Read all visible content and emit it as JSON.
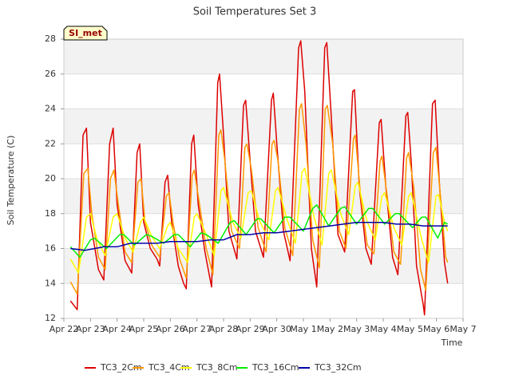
{
  "chart_data": {
    "type": "line",
    "title": "Soil Temperatures Set 3",
    "xlabel": "Time",
    "ylabel": "Soil Temperature (C)",
    "station_tag": "SI_met",
    "xlim": [
      0,
      15
    ],
    "ylim": [
      12,
      28
    ],
    "x_ticks": [
      {
        "x": 0,
        "label": "Apr 22"
      },
      {
        "x": 1,
        "label": "Apr 23"
      },
      {
        "x": 2,
        "label": "Apr 24"
      },
      {
        "x": 3,
        "label": "Apr 25"
      },
      {
        "x": 4,
        "label": "Apr 26"
      },
      {
        "x": 5,
        "label": "Apr 27"
      },
      {
        "x": 6,
        "label": "Apr 28"
      },
      {
        "x": 7,
        "label": "Apr 29"
      },
      {
        "x": 8,
        "label": "Apr 30"
      },
      {
        "x": 9,
        "label": "May 1"
      },
      {
        "x": 10,
        "label": "May 2"
      },
      {
        "x": 11,
        "label": "May 3"
      },
      {
        "x": 12,
        "label": "May 4"
      },
      {
        "x": 13,
        "label": "May 5"
      },
      {
        "x": 14,
        "label": "May 6"
      },
      {
        "x": 15,
        "label": "May 7"
      }
    ],
    "y_ticks": [
      12,
      14,
      16,
      18,
      20,
      22,
      24,
      26,
      28
    ],
    "grid": true,
    "legend_position": "bottom",
    "series": [
      {
        "name": "TC3_2Cm",
        "color": "#dd0000",
        "points": [
          [
            0.25,
            13.0
          ],
          [
            0.5,
            12.5
          ],
          [
            0.72,
            22.5
          ],
          [
            0.85,
            22.9
          ],
          [
            1.0,
            17.5
          ],
          [
            1.3,
            14.8
          ],
          [
            1.5,
            14.2
          ],
          [
            1.72,
            22.0
          ],
          [
            1.85,
            22.9
          ],
          [
            2.0,
            18.5
          ],
          [
            2.3,
            15.3
          ],
          [
            2.55,
            14.6
          ],
          [
            2.75,
            21.5
          ],
          [
            2.85,
            22.0
          ],
          [
            3.0,
            17.5
          ],
          [
            3.25,
            16.0
          ],
          [
            3.5,
            15.4
          ],
          [
            3.6,
            15.0
          ],
          [
            3.8,
            19.8
          ],
          [
            3.9,
            20.2
          ],
          [
            4.05,
            17.5
          ],
          [
            4.3,
            15.0
          ],
          [
            4.5,
            14.0
          ],
          [
            4.6,
            13.7
          ],
          [
            4.8,
            22.0
          ],
          [
            4.88,
            22.5
          ],
          [
            5.05,
            18.5
          ],
          [
            5.3,
            15.8
          ],
          [
            5.5,
            14.2
          ],
          [
            5.55,
            13.8
          ],
          [
            5.78,
            25.5
          ],
          [
            5.85,
            26.0
          ],
          [
            6.0,
            22.5
          ],
          [
            6.2,
            17.0
          ],
          [
            6.5,
            15.4
          ],
          [
            6.75,
            24.2
          ],
          [
            6.83,
            24.5
          ],
          [
            7.0,
            21.0
          ],
          [
            7.2,
            17.0
          ],
          [
            7.5,
            15.5
          ],
          [
            7.8,
            24.5
          ],
          [
            7.87,
            24.9
          ],
          [
            8.0,
            22.0
          ],
          [
            8.25,
            17.0
          ],
          [
            8.5,
            15.3
          ],
          [
            8.82,
            27.5
          ],
          [
            8.9,
            27.9
          ],
          [
            9.05,
            25.0
          ],
          [
            9.3,
            16.0
          ],
          [
            9.5,
            13.8
          ],
          [
            9.8,
            27.5
          ],
          [
            9.88,
            27.8
          ],
          [
            10.05,
            23.5
          ],
          [
            10.3,
            16.8
          ],
          [
            10.55,
            15.8
          ],
          [
            10.85,
            25.0
          ],
          [
            10.92,
            25.1
          ],
          [
            11.1,
            19.5
          ],
          [
            11.35,
            16.0
          ],
          [
            11.55,
            15.1
          ],
          [
            11.85,
            23.2
          ],
          [
            11.92,
            23.4
          ],
          [
            12.1,
            19.5
          ],
          [
            12.35,
            15.5
          ],
          [
            12.55,
            14.5
          ],
          [
            12.85,
            23.6
          ],
          [
            12.92,
            23.8
          ],
          [
            13.05,
            21.0
          ],
          [
            13.25,
            15.0
          ],
          [
            13.5,
            12.8
          ],
          [
            13.55,
            12.2
          ],
          [
            13.85,
            24.3
          ],
          [
            13.95,
            24.5
          ],
          [
            14.1,
            20.0
          ],
          [
            14.3,
            15.2
          ],
          [
            14.42,
            14.0
          ]
        ]
      },
      {
        "name": "TC3_4Cm",
        "color": "#ff9900",
        "points": [
          [
            0.25,
            14.1
          ],
          [
            0.5,
            13.4
          ],
          [
            0.75,
            20.3
          ],
          [
            0.9,
            20.6
          ],
          [
            1.05,
            18.0
          ],
          [
            1.3,
            15.5
          ],
          [
            1.55,
            14.8
          ],
          [
            1.75,
            20.0
          ],
          [
            1.88,
            20.5
          ],
          [
            2.05,
            18.5
          ],
          [
            2.3,
            15.8
          ],
          [
            2.55,
            15.2
          ],
          [
            2.78,
            19.8
          ],
          [
            2.9,
            20.0
          ],
          [
            3.05,
            17.5
          ],
          [
            3.3,
            16.2
          ],
          [
            3.6,
            15.5
          ],
          [
            3.85,
            19.0
          ],
          [
            3.95,
            19.2
          ],
          [
            4.1,
            17.5
          ],
          [
            4.35,
            15.4
          ],
          [
            4.6,
            14.3
          ],
          [
            4.82,
            20.2
          ],
          [
            4.9,
            20.5
          ],
          [
            5.1,
            18.5
          ],
          [
            5.35,
            16.0
          ],
          [
            5.6,
            14.5
          ],
          [
            5.82,
            22.5
          ],
          [
            5.9,
            22.8
          ],
          [
            6.05,
            21.0
          ],
          [
            6.3,
            17.0
          ],
          [
            6.6,
            16.0
          ],
          [
            6.8,
            21.8
          ],
          [
            6.88,
            22.0
          ],
          [
            7.05,
            20.5
          ],
          [
            7.3,
            17.2
          ],
          [
            7.6,
            15.8
          ],
          [
            7.82,
            22.0
          ],
          [
            7.9,
            22.2
          ],
          [
            8.05,
            21.0
          ],
          [
            8.3,
            17.2
          ],
          [
            8.6,
            15.6
          ],
          [
            8.85,
            24.0
          ],
          [
            8.93,
            24.3
          ],
          [
            9.1,
            22.0
          ],
          [
            9.35,
            16.5
          ],
          [
            9.6,
            14.9
          ],
          [
            9.82,
            24.0
          ],
          [
            9.9,
            24.2
          ],
          [
            10.1,
            22.0
          ],
          [
            10.35,
            17.0
          ],
          [
            10.6,
            16.0
          ],
          [
            10.88,
            22.3
          ],
          [
            10.95,
            22.5
          ],
          [
            11.15,
            19.0
          ],
          [
            11.4,
            16.2
          ],
          [
            11.65,
            15.7
          ],
          [
            11.88,
            21.0
          ],
          [
            11.95,
            21.3
          ],
          [
            12.15,
            19.0
          ],
          [
            12.4,
            15.8
          ],
          [
            12.65,
            15.1
          ],
          [
            12.88,
            21.2
          ],
          [
            12.95,
            21.5
          ],
          [
            13.15,
            19.5
          ],
          [
            13.4,
            14.8
          ],
          [
            13.6,
            13.6
          ],
          [
            13.88,
            21.5
          ],
          [
            13.98,
            21.8
          ],
          [
            14.15,
            19.0
          ],
          [
            14.35,
            15.5
          ],
          [
            14.42,
            15.2
          ]
        ]
      },
      {
        "name": "TC3_8Cm",
        "color": "#ffff00",
        "points": [
          [
            0.25,
            15.4
          ],
          [
            0.55,
            14.6
          ],
          [
            0.85,
            17.8
          ],
          [
            1.0,
            18.0
          ],
          [
            1.25,
            16.5
          ],
          [
            1.55,
            15.6
          ],
          [
            1.85,
            17.8
          ],
          [
            2.0,
            18.0
          ],
          [
            2.3,
            16.6
          ],
          [
            2.6,
            15.8
          ],
          [
            2.88,
            17.5
          ],
          [
            3.0,
            17.8
          ],
          [
            3.3,
            16.7
          ],
          [
            3.6,
            16.0
          ],
          [
            3.9,
            17.3
          ],
          [
            4.0,
            17.5
          ],
          [
            4.3,
            16.0
          ],
          [
            4.65,
            15.2
          ],
          [
            4.9,
            17.8
          ],
          [
            5.0,
            18.0
          ],
          [
            5.35,
            16.8
          ],
          [
            5.65,
            15.6
          ],
          [
            5.9,
            19.3
          ],
          [
            6.0,
            19.5
          ],
          [
            6.35,
            17.5
          ],
          [
            6.65,
            16.6
          ],
          [
            6.92,
            19.2
          ],
          [
            7.05,
            19.3
          ],
          [
            7.35,
            17.6
          ],
          [
            7.7,
            16.5
          ],
          [
            7.95,
            19.3
          ],
          [
            8.05,
            19.5
          ],
          [
            8.4,
            17.6
          ],
          [
            8.7,
            16.3
          ],
          [
            8.95,
            20.4
          ],
          [
            9.05,
            20.6
          ],
          [
            9.4,
            17.8
          ],
          [
            9.7,
            16.2
          ],
          [
            9.95,
            20.3
          ],
          [
            10.05,
            20.5
          ],
          [
            10.4,
            18.0
          ],
          [
            10.7,
            16.8
          ],
          [
            10.95,
            19.6
          ],
          [
            11.05,
            19.8
          ],
          [
            11.4,
            17.5
          ],
          [
            11.7,
            16.5
          ],
          [
            11.95,
            19.0
          ],
          [
            12.05,
            19.2
          ],
          [
            12.4,
            17.2
          ],
          [
            12.7,
            16.2
          ],
          [
            12.95,
            19.0
          ],
          [
            13.05,
            19.2
          ],
          [
            13.45,
            16.5
          ],
          [
            13.7,
            15.2
          ],
          [
            13.98,
            19.0
          ],
          [
            14.08,
            19.1
          ],
          [
            14.3,
            17.5
          ],
          [
            14.42,
            17.0
          ]
        ]
      },
      {
        "name": "TC3_16Cm",
        "color": "#00ee00",
        "points": [
          [
            0.25,
            16.1
          ],
          [
            0.6,
            15.5
          ],
          [
            1.0,
            16.5
          ],
          [
            1.15,
            16.6
          ],
          [
            1.6,
            16.0
          ],
          [
            2.1,
            16.8
          ],
          [
            2.25,
            16.8
          ],
          [
            2.65,
            16.2
          ],
          [
            3.1,
            16.8
          ],
          [
            3.3,
            16.7
          ],
          [
            3.75,
            16.3
          ],
          [
            4.15,
            16.8
          ],
          [
            4.3,
            16.8
          ],
          [
            4.75,
            16.1
          ],
          [
            5.15,
            16.9
          ],
          [
            5.35,
            16.8
          ],
          [
            5.8,
            16.3
          ],
          [
            6.25,
            17.5
          ],
          [
            6.4,
            17.6
          ],
          [
            6.85,
            16.8
          ],
          [
            7.25,
            17.7
          ],
          [
            7.4,
            17.7
          ],
          [
            7.9,
            16.9
          ],
          [
            8.3,
            17.8
          ],
          [
            8.5,
            17.8
          ],
          [
            9.0,
            17.0
          ],
          [
            9.35,
            18.3
          ],
          [
            9.5,
            18.5
          ],
          [
            9.95,
            17.3
          ],
          [
            10.4,
            18.3
          ],
          [
            10.55,
            18.4
          ],
          [
            11.0,
            17.4
          ],
          [
            11.45,
            18.3
          ],
          [
            11.6,
            18.3
          ],
          [
            12.05,
            17.4
          ],
          [
            12.45,
            18.0
          ],
          [
            12.6,
            18.0
          ],
          [
            13.1,
            17.2
          ],
          [
            13.45,
            17.8
          ],
          [
            13.6,
            17.8
          ],
          [
            14.05,
            16.6
          ],
          [
            14.3,
            17.5
          ],
          [
            14.42,
            17.4
          ]
        ]
      },
      {
        "name": "TC3_32Cm",
        "color": "#0000aa",
        "points": [
          [
            0.25,
            16.0
          ],
          [
            0.8,
            15.9
          ],
          [
            1.5,
            16.1
          ],
          [
            2.0,
            16.1
          ],
          [
            2.5,
            16.3
          ],
          [
            3.0,
            16.3
          ],
          [
            3.5,
            16.3
          ],
          [
            4.0,
            16.4
          ],
          [
            4.5,
            16.4
          ],
          [
            5.0,
            16.4
          ],
          [
            5.5,
            16.5
          ],
          [
            6.0,
            16.5
          ],
          [
            6.5,
            16.8
          ],
          [
            7.0,
            16.8
          ],
          [
            7.5,
            16.9
          ],
          [
            8.0,
            16.9
          ],
          [
            8.5,
            17.0
          ],
          [
            9.0,
            17.1
          ],
          [
            9.5,
            17.2
          ],
          [
            10.0,
            17.3
          ],
          [
            10.5,
            17.4
          ],
          [
            11.0,
            17.5
          ],
          [
            11.5,
            17.5
          ],
          [
            12.0,
            17.5
          ],
          [
            12.5,
            17.4
          ],
          [
            13.0,
            17.4
          ],
          [
            13.5,
            17.3
          ],
          [
            14.0,
            17.3
          ],
          [
            14.42,
            17.3
          ]
        ]
      }
    ]
  }
}
